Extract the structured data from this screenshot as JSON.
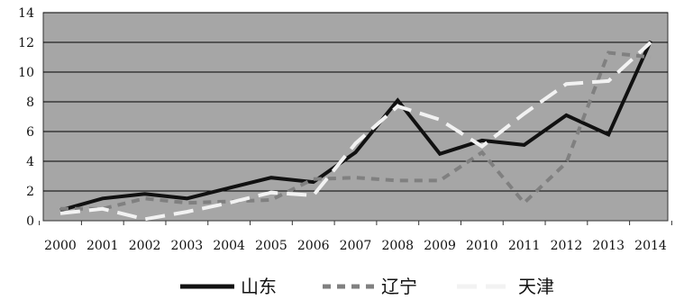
{
  "chart_data": {
    "type": "line",
    "title": "",
    "xlabel": "",
    "ylabel": "",
    "grid": true,
    "background": "#a6a6a6",
    "legend_position": "bottom",
    "x": [
      "2000",
      "2001",
      "2002",
      "2003",
      "2004",
      "2005",
      "2006",
      "2007",
      "2008",
      "2009",
      "2010",
      "2011",
      "2012",
      "2013",
      "2014"
    ],
    "ylim": [
      0,
      14
    ],
    "yticks": [
      "0",
      "2",
      "4",
      "6",
      "8",
      "10",
      "12",
      "14"
    ],
    "series": [
      {
        "name": "山东",
        "color": "#111111",
        "dash": "solid",
        "values": [
          0.7,
          1.5,
          1.8,
          1.5,
          2.2,
          2.9,
          2.6,
          4.6,
          8.1,
          4.5,
          5.4,
          5.1,
          7.1,
          5.8,
          12.1
        ]
      },
      {
        "name": "辽宁",
        "color": "#808080",
        "dash": "dashed",
        "values": [
          0.8,
          0.8,
          1.5,
          1.2,
          1.3,
          1.4,
          2.8,
          2.9,
          2.7,
          2.7,
          4.6,
          1.2,
          3.9,
          11.3,
          11.0
        ]
      },
      {
        "name": "天津",
        "color": "#f2f2f2",
        "dash": "long-dashed",
        "values": [
          0.5,
          0.8,
          0.1,
          0.6,
          1.2,
          1.9,
          1.7,
          5.2,
          7.7,
          6.8,
          5.0,
          7.2,
          9.2,
          9.4,
          12.0
        ]
      }
    ]
  }
}
